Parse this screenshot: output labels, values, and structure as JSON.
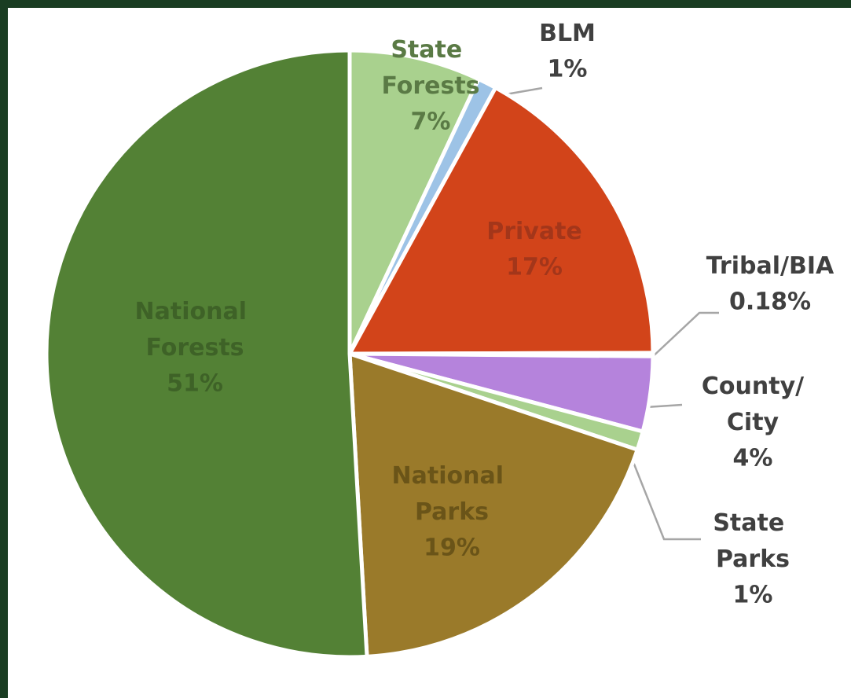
{
  "chart_data": {
    "type": "pie",
    "categories": [
      "State Forests",
      "BLM",
      "Private",
      "Tribal/BIA",
      "County/City",
      "State Parks",
      "National Parks",
      "National Forests"
    ],
    "values": [
      7,
      1,
      17,
      0.18,
      4,
      1,
      19,
      51
    ],
    "value_labels": [
      "7%",
      "1%",
      "17%",
      "0.18%",
      "4%",
      "1%",
      "19%",
      "51%"
    ],
    "colors": [
      "#a9d18e",
      "#9dc3e6",
      "#d2441a",
      "#5b9bd5",
      "#b583dc",
      "#a9d18e",
      "#9a7a2a",
      "#538135"
    ]
  }
}
